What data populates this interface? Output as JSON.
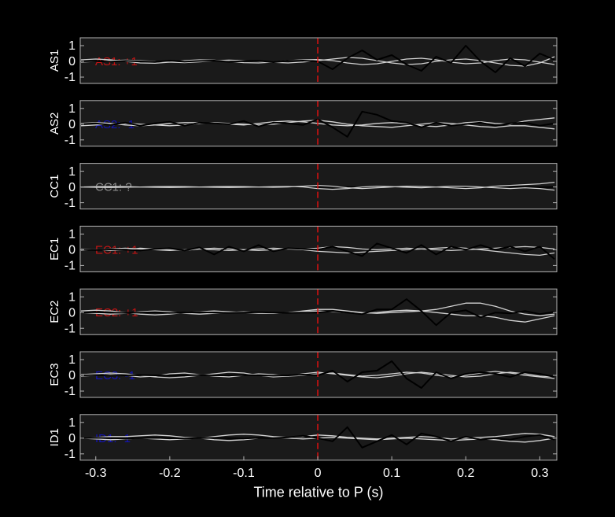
{
  "chart_data": [
    {
      "type": "line",
      "ylabel": "AS1",
      "annotation": "AS1: +1",
      "annotation_color": "#c81414",
      "vline": 0,
      "vline_color": "#e01010",
      "xlim": [
        -0.321,
        0.323
      ],
      "ylim": [
        -1.4,
        1.5
      ],
      "yticks": [
        -1,
        0,
        1
      ],
      "x": [
        -0.32,
        -0.3,
        -0.28,
        -0.26,
        -0.24,
        -0.22,
        -0.2,
        -0.18,
        -0.16,
        -0.14,
        -0.12,
        -0.1,
        -0.08,
        -0.06,
        -0.04,
        -0.02,
        0,
        0.02,
        0.04,
        0.06,
        0.08,
        0.1,
        0.12,
        0.14,
        0.16,
        0.18,
        0.2,
        0.22,
        0.24,
        0.26,
        0.28,
        0.3,
        0.32
      ],
      "series": [
        {
          "color": "#d2d2d2",
          "values": [
            0.1,
            0.15,
            0.1,
            0,
            -0.1,
            -0.12,
            -0.05,
            0.05,
            0.1,
            0.08,
            0,
            -0.08,
            -0.1,
            -0.05,
            0.05,
            0.1,
            0.12,
            0.05,
            -0.1,
            -0.2,
            -0.15,
            0,
            0.15,
            0.2,
            0.1,
            -0.05,
            -0.15,
            -0.1,
            0.05,
            0.15,
            0.1,
            -0.05,
            -0.2
          ]
        },
        {
          "color": "#d2d2d2",
          "values": [
            -0.05,
            0,
            0.05,
            0.08,
            0.05,
            0,
            -0.05,
            -0.08,
            -0.03,
            0.04,
            0.08,
            0.05,
            0,
            -0.06,
            -0.1,
            -0.04,
            0.05,
            0.15,
            0.25,
            0.2,
            0.05,
            -0.1,
            -0.2,
            -0.15,
            0,
            0.1,
            0.15,
            0.05,
            -0.1,
            -0.25,
            -0.3,
            -0.1,
            0.3
          ]
        },
        {
          "color": "#000000",
          "values": [
            0,
            0.02,
            -0.02,
            0.03,
            0,
            -0.03,
            0.05,
            -0.02,
            0.03,
            0.05,
            -0.03,
            0.02,
            0.04,
            -0.05,
            0.03,
            0.05,
            0,
            -0.5,
            0.2,
            0.7,
            0.1,
            0.4,
            -0.2,
            -0.6,
            0.3,
            -0.1,
            1.0,
            0,
            -0.7,
            0.2,
            -0.3,
            0.5,
            0.1
          ]
        }
      ]
    },
    {
      "type": "line",
      "ylabel": "AS2",
      "annotation": "AS2: -1",
      "annotation_color": "#1414b4",
      "vline": 0,
      "vline_color": "#e01010",
      "xlim": [
        -0.321,
        0.323
      ],
      "ylim": [
        -1.4,
        1.5
      ],
      "yticks": [
        -1,
        0,
        1
      ],
      "x": [
        -0.32,
        -0.3,
        -0.28,
        -0.26,
        -0.24,
        -0.22,
        -0.2,
        -0.18,
        -0.16,
        -0.14,
        -0.12,
        -0.1,
        -0.08,
        -0.06,
        -0.04,
        -0.02,
        0,
        0.02,
        0.04,
        0.06,
        0.08,
        0.1,
        0.12,
        0.14,
        0.16,
        0.18,
        0.2,
        0.22,
        0.24,
        0.26,
        0.28,
        0.3,
        0.32
      ],
      "series": [
        {
          "color": "#d2d2d2",
          "values": [
            0.05,
            0.1,
            0.05,
            -0.05,
            -0.1,
            -0.05,
            0.05,
            0.1,
            0.1,
            0.05,
            0,
            -0.05,
            0.05,
            0.15,
            0.2,
            0.15,
            0.05,
            -0.05,
            -0.1,
            -0.05,
            0.05,
            0.1,
            0.05,
            -0.1,
            -0.15,
            -0.05,
            0.1,
            0.15,
            0.05,
            0,
            0.2,
            0.3,
            0.4
          ]
        },
        {
          "color": "#d2d2d2",
          "values": [
            -0.1,
            -0.05,
            0,
            0.05,
            0,
            -0.05,
            -0.1,
            -0.05,
            0.05,
            0.1,
            0.05,
            0,
            -0.05,
            0,
            0.1,
            0.2,
            0.25,
            0.15,
            0,
            -0.1,
            -0.15,
            -0.2,
            -0.1,
            0,
            0.1,
            0.05,
            -0.05,
            -0.15,
            -0.2,
            -0.1,
            -0.1,
            -0.2,
            -0.3
          ]
        },
        {
          "color": "#000000",
          "values": [
            0,
            0.05,
            -0.05,
            0.1,
            -0.1,
            0.05,
            0.15,
            -0.1,
            0.1,
            0.05,
            0,
            0.2,
            -0.15,
            0.1,
            0.05,
            -0.05,
            0.3,
            -0.2,
            -0.8,
            0.8,
            0.6,
            0.2,
            0.1,
            -0.2,
            0.1,
            -0.1,
            0,
            0.1,
            -0.1,
            0.05,
            0.1,
            -0.1,
            0.05
          ]
        }
      ]
    },
    {
      "type": "line",
      "ylabel": "CC1",
      "annotation": "CC1: ?",
      "annotation_color": "#8c8c8c",
      "vline": 0,
      "vline_color": "#e01010",
      "xlim": [
        -0.321,
        0.323
      ],
      "ylim": [
        -1.4,
        1.5
      ],
      "yticks": [
        -1,
        0,
        1
      ],
      "x": [
        -0.32,
        -0.3,
        -0.28,
        -0.26,
        -0.24,
        -0.22,
        -0.2,
        -0.18,
        -0.16,
        -0.14,
        -0.12,
        -0.1,
        -0.08,
        -0.06,
        -0.04,
        -0.02,
        0,
        0.02,
        0.04,
        0.06,
        0.08,
        0.1,
        0.12,
        0.14,
        0.16,
        0.18,
        0.2,
        0.22,
        0.24,
        0.26,
        0.28,
        0.3,
        0.32
      ],
      "series": [
        {
          "color": "#000000",
          "values": [
            0,
            0.02,
            0,
            -0.02,
            0,
            0.02,
            0,
            -0.02,
            0,
            0.02,
            0,
            -0.02,
            0,
            0.02,
            0,
            -0.02,
            0,
            0.02,
            0,
            -0.02,
            0,
            0.02,
            0,
            -0.02,
            0,
            0.02,
            0,
            -0.02,
            0,
            0.02,
            0,
            -0.02,
            0
          ]
        },
        {
          "color": "#d2d2d2",
          "values": [
            0,
            0.02,
            0.03,
            0.02,
            0,
            -0.02,
            -0.03,
            -0.02,
            0,
            0.02,
            0.03,
            0.02,
            0,
            -0.02,
            0,
            0.05,
            0.1,
            0.05,
            -0.05,
            -0.1,
            -0.05,
            0,
            0.05,
            0.03,
            0,
            -0.05,
            -0.1,
            -0.05,
            0.05,
            0.1,
            0.15,
            0.2,
            0.3
          ]
        },
        {
          "color": "#d2d2d2",
          "values": [
            0,
            -0.02,
            -0.03,
            -0.02,
            0,
            0.02,
            0.03,
            0.02,
            0,
            -0.02,
            -0.03,
            -0.02,
            0,
            0.02,
            0.03,
            0,
            -0.1,
            -0.15,
            -0.1,
            0,
            0.05,
            0.02,
            -0.02,
            -0.05,
            0,
            0.05,
            0.05,
            0,
            -0.05,
            -0.1,
            -0.05,
            -0.1,
            -0.2
          ]
        }
      ]
    },
    {
      "type": "line",
      "ylabel": "EC1",
      "annotation": "EC1: +1",
      "annotation_color": "#c81414",
      "vline": 0,
      "vline_color": "#e01010",
      "xlim": [
        -0.321,
        0.323
      ],
      "ylim": [
        -1.4,
        1.5
      ],
      "yticks": [
        -1,
        0,
        1
      ],
      "x": [
        -0.32,
        -0.3,
        -0.28,
        -0.26,
        -0.24,
        -0.22,
        -0.2,
        -0.18,
        -0.16,
        -0.14,
        -0.12,
        -0.1,
        -0.08,
        -0.06,
        -0.04,
        -0.02,
        0,
        0.02,
        0.04,
        0.06,
        0.08,
        0.1,
        0.12,
        0.14,
        0.16,
        0.18,
        0.2,
        0.22,
        0.24,
        0.26,
        0.28,
        0.3,
        0.32
      ],
      "series": [
        {
          "color": "#d2d2d2",
          "values": [
            0.05,
            0,
            -0.05,
            0,
            0.1,
            0.05,
            0,
            -0.05,
            0.05,
            0.1,
            0.05,
            0,
            -0.05,
            0,
            0.05,
            0,
            -0.1,
            -0.15,
            -0.2,
            -0.15,
            -0.1,
            -0.05,
            0,
            0.05,
            0.1,
            0.15,
            0.1,
            0,
            -0.1,
            -0.2,
            -0.3,
            -0.35,
            -0.2
          ]
        },
        {
          "color": "#d2d2d2",
          "values": [
            -0.05,
            0,
            0.05,
            0.1,
            0.05,
            0,
            -0.05,
            0,
            0.05,
            0,
            -0.05,
            0,
            0.05,
            0.1,
            0.05,
            0.05,
            0.1,
            0.2,
            0.15,
            0.05,
            0,
            0.05,
            0.1,
            0.05,
            0,
            -0.05,
            0,
            0.05,
            0.1,
            0.15,
            0.2,
            0.15,
            0.05
          ]
        },
        {
          "color": "#000000",
          "values": [
            0,
            -0.02,
            0.02,
            0,
            -0.05,
            0.05,
            0.1,
            -0.05,
            0.15,
            -0.3,
            0.2,
            -0.1,
            0.3,
            -0.1,
            0.1,
            0.05,
            0,
            0.2,
            -0.1,
            -0.4,
            0.4,
            0.1,
            -0.2,
            0.3,
            -0.3,
            0.2,
            0,
            0.3,
            0,
            0.2,
            -0.1,
            0.2,
            -0.6
          ]
        }
      ]
    },
    {
      "type": "line",
      "ylabel": "EC2",
      "annotation": "EC2: +1",
      "annotation_color": "#c81414",
      "vline": 0,
      "vline_color": "#e01010",
      "xlim": [
        -0.321,
        0.323
      ],
      "ylim": [
        -1.4,
        1.5
      ],
      "yticks": [
        -1,
        0,
        1
      ],
      "x": [
        -0.32,
        -0.3,
        -0.28,
        -0.26,
        -0.24,
        -0.22,
        -0.2,
        -0.18,
        -0.16,
        -0.14,
        -0.12,
        -0.1,
        -0.08,
        -0.06,
        -0.04,
        -0.02,
        0,
        0.02,
        0.04,
        0.06,
        0.08,
        0.1,
        0.12,
        0.14,
        0.16,
        0.18,
        0.2,
        0.22,
        0.24,
        0.26,
        0.28,
        0.3,
        0.32
      ],
      "series": [
        {
          "color": "#d2d2d2",
          "values": [
            0.1,
            0.15,
            0.1,
            0,
            -0.1,
            -0.15,
            -0.1,
            0,
            0.05,
            0.1,
            0.05,
            0,
            -0.05,
            -0.05,
            0,
            0.1,
            0.2,
            0.2,
            0.1,
            0,
            -0.05,
            0,
            0.05,
            0.1,
            0.2,
            0.4,
            0.6,
            0.6,
            0.4,
            0.1,
            -0.1,
            -0.2,
            -0.1
          ]
        },
        {
          "color": "#d2d2d2",
          "values": [
            0,
            -0.05,
            -0.1,
            -0.05,
            0.05,
            0.1,
            0.05,
            -0.05,
            -0.1,
            -0.05,
            0,
            0.05,
            0,
            -0.05,
            0,
            0.05,
            0.1,
            0.05,
            0,
            -0.05,
            0,
            0.1,
            0.15,
            0.1,
            0,
            -0.1,
            -0.2,
            -0.2,
            -0.3,
            -0.5,
            -0.6,
            -0.4,
            -0.2
          ]
        },
        {
          "color": "#000000",
          "values": [
            0,
            0.02,
            0,
            -0.02,
            0,
            0.02,
            -0.02,
            0,
            0.02,
            0,
            -0.02,
            0,
            0.02,
            0,
            -0.02,
            0,
            0,
            0.1,
            0,
            -0.1,
            0.2,
            0.2,
            0.85,
            0.1,
            -0.8,
            0,
            0.15,
            -0.3,
            0,
            -0.05,
            0.1,
            -0.1,
            0.05
          ]
        }
      ]
    },
    {
      "type": "line",
      "ylabel": "EC3",
      "annotation": "EC3: -1",
      "annotation_color": "#1414b4",
      "vline": 0,
      "vline_color": "#e01010",
      "xlim": [
        -0.321,
        0.323
      ],
      "ylim": [
        -1.4,
        1.5
      ],
      "yticks": [
        -1,
        0,
        1
      ],
      "x": [
        -0.32,
        -0.3,
        -0.28,
        -0.26,
        -0.24,
        -0.22,
        -0.2,
        -0.18,
        -0.16,
        -0.14,
        -0.12,
        -0.1,
        -0.08,
        -0.06,
        -0.04,
        -0.02,
        0,
        0.02,
        0.04,
        0.06,
        0.08,
        0.1,
        0.12,
        0.14,
        0.16,
        0.18,
        0.2,
        0.22,
        0.24,
        0.26,
        0.28,
        0.3,
        0.32
      ],
      "series": [
        {
          "color": "#d2d2d2",
          "values": [
            0.05,
            0.1,
            0.15,
            0.1,
            0,
            -0.1,
            -0.15,
            -0.1,
            0,
            0.1,
            0.2,
            0.15,
            0,
            -0.1,
            -0.05,
            0.1,
            0.2,
            0.1,
            0,
            -0.1,
            -0.15,
            -0.05,
            0.1,
            0.2,
            0.1,
            0,
            -0.1,
            -0.05,
            0.1,
            0.2,
            0.1,
            -0.05,
            -0.1
          ]
        },
        {
          "color": "#d2d2d2",
          "values": [
            -0.05,
            0,
            0.05,
            0,
            -0.1,
            -0.05,
            0.1,
            0.15,
            0.05,
            -0.05,
            -0.1,
            0,
            0.1,
            0.05,
            -0.05,
            0,
            0.1,
            0.15,
            0.05,
            -0.05,
            0,
            0.1,
            0.2,
            0.15,
            0,
            -0.1,
            0,
            0.15,
            0.25,
            0.15,
            0,
            -0.1,
            -0.2
          ]
        },
        {
          "color": "#000000",
          "values": [
            0,
            0.02,
            -0.02,
            0,
            0.02,
            0,
            -0.02,
            0,
            0.02,
            0,
            0,
            0.02,
            0,
            -0.02,
            0,
            0.05,
            0,
            0.3,
            -0.4,
            0.2,
            0.3,
            0.9,
            -0.2,
            -0.8,
            0.2,
            -0.2,
            0.1,
            0.2,
            0.1,
            -0.1,
            0.2,
            0.1,
            -0.1
          ]
        }
      ]
    },
    {
      "type": "line",
      "ylabel": "ID1",
      "annotation": "ID1: -1",
      "annotation_color": "#1414b4",
      "vline": 0,
      "vline_color": "#e01010",
      "xlabel": "Time relative to P (s)",
      "xlim": [
        -0.321,
        0.323
      ],
      "ylim": [
        -1.4,
        1.5
      ],
      "yticks": [
        -1,
        0,
        1
      ],
      "xticks": [
        -0.3,
        -0.2,
        -0.1,
        0,
        0.1,
        0.2,
        0.3
      ],
      "x": [
        -0.32,
        -0.3,
        -0.28,
        -0.26,
        -0.24,
        -0.22,
        -0.2,
        -0.18,
        -0.16,
        -0.14,
        -0.12,
        -0.1,
        -0.08,
        -0.06,
        -0.04,
        -0.02,
        0,
        0.02,
        0.04,
        0.06,
        0.08,
        0.1,
        0.12,
        0.14,
        0.16,
        0.18,
        0.2,
        0.22,
        0.24,
        0.26,
        0.28,
        0.3,
        0.32
      ],
      "series": [
        {
          "color": "#d2d2d2",
          "values": [
            0,
            0.05,
            0.1,
            0.1,
            0.15,
            0.2,
            0.15,
            0.05,
            0,
            0.1,
            0.2,
            0.25,
            0.2,
            0.1,
            0.05,
            0.1,
            0.2,
            0.15,
            0.05,
            0,
            -0.05,
            0,
            0.05,
            0.1,
            0.05,
            -0.05,
            0,
            0.05,
            0.1,
            0.2,
            0.3,
            0.25,
            0.1
          ]
        },
        {
          "color": "#d2d2d2",
          "values": [
            0,
            -0.05,
            -0.1,
            -0.05,
            0,
            -0.05,
            -0.1,
            -0.05,
            0,
            -0.1,
            -0.15,
            -0.1,
            0,
            0.05,
            0,
            -0.05,
            0,
            0.05,
            0,
            -0.05,
            -0.1,
            -0.05,
            0,
            -0.05,
            -0.1,
            -0.15,
            -0.1,
            -0.05,
            -0.1,
            -0.2,
            -0.25,
            -0.15,
            0
          ]
        },
        {
          "color": "#000000",
          "values": [
            0,
            0.02,
            0,
            -0.02,
            0,
            0.02,
            0,
            -0.02,
            0,
            0.02,
            0,
            -0.02,
            0.02,
            0,
            0.05,
            0.15,
            0,
            -0.2,
            0.7,
            -0.6,
            -0.2,
            0.2,
            -0.4,
            0.3,
            0.1,
            -0.2,
            0.1,
            -0.1,
            0,
            -0.1,
            0.1,
            0.2,
            -0.1
          ]
        }
      ]
    }
  ]
}
